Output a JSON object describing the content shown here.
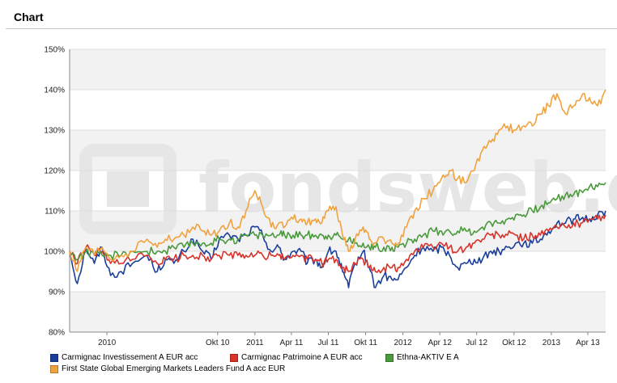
{
  "page": {
    "title": "Chart"
  },
  "watermark": {
    "text": "fondsweb.de"
  },
  "colors": {
    "band": "#f2f2f2",
    "grid": "#dddddd",
    "axis": "#888888"
  },
  "chart_data": {
    "type": "line",
    "title": "",
    "xlabel": "",
    "ylabel": "",
    "x_range": [
      "2009-10-01",
      "2013-05-15"
    ],
    "ylim": [
      80,
      150
    ],
    "y_ticks": [
      80,
      90,
      100,
      110,
      120,
      130,
      140,
      150
    ],
    "y_tick_labels": [
      "80%",
      "90%",
      "100%",
      "110%",
      "120%",
      "130%",
      "140%",
      "150%"
    ],
    "x_ticks": [
      {
        "label": "2010",
        "date": "2010-01-01"
      },
      {
        "label": "Okt 10",
        "date": "2010-10-01"
      },
      {
        "label": "2011",
        "date": "2011-01-01"
      },
      {
        "label": "Apr 11",
        "date": "2011-04-01"
      },
      {
        "label": "Jul 11",
        "date": "2011-07-01"
      },
      {
        "label": "Okt 11",
        "date": "2011-10-01"
      },
      {
        "label": "2012",
        "date": "2012-01-01"
      },
      {
        "label": "Apr 12",
        "date": "2012-04-01"
      },
      {
        "label": "Jul 12",
        "date": "2012-07-01"
      },
      {
        "label": "Okt 12",
        "date": "2012-10-01"
      },
      {
        "label": "2013",
        "date": "2013-01-01"
      },
      {
        "label": "Apr 13",
        "date": "2013-04-01"
      }
    ],
    "grid": true,
    "legend_position": "bottom",
    "series": [
      {
        "name": "Carmignac Investissement A EUR acc",
        "color": "#1a3f9b",
        "points": [
          [
            "2009-10-01",
            100
          ],
          [
            "2009-10-20",
            92
          ],
          [
            "2009-11-10",
            101
          ],
          [
            "2009-12-01",
            97
          ],
          [
            "2009-12-20",
            101
          ],
          [
            "2010-01-10",
            94
          ],
          [
            "2010-02-05",
            95
          ],
          [
            "2010-03-05",
            97
          ],
          [
            "2010-04-10",
            99
          ],
          [
            "2010-05-05",
            95
          ],
          [
            "2010-05-25",
            98
          ],
          [
            "2010-06-15",
            97
          ],
          [
            "2010-07-10",
            100
          ],
          [
            "2010-08-01",
            103
          ],
          [
            "2010-08-25",
            100
          ],
          [
            "2010-09-15",
            98
          ],
          [
            "2010-10-05",
            103
          ],
          [
            "2010-10-30",
            104
          ],
          [
            "2010-11-20",
            103
          ],
          [
            "2010-12-10",
            104
          ],
          [
            "2011-01-01",
            106
          ],
          [
            "2011-01-20",
            104
          ],
          [
            "2011-02-10",
            100
          ],
          [
            "2011-03-01",
            101
          ],
          [
            "2011-03-15",
            98
          ],
          [
            "2011-04-05",
            100
          ],
          [
            "2011-04-25",
            100
          ],
          [
            "2011-05-10",
            97
          ],
          [
            "2011-05-30",
            98
          ],
          [
            "2011-06-15",
            96
          ],
          [
            "2011-07-01",
            100
          ],
          [
            "2011-07-20",
            100
          ],
          [
            "2011-08-05",
            95
          ],
          [
            "2011-08-20",
            91
          ],
          [
            "2011-09-05",
            97
          ],
          [
            "2011-09-25",
            100
          ],
          [
            "2011-10-10",
            96
          ],
          [
            "2011-10-25",
            91
          ],
          [
            "2011-11-15",
            94
          ],
          [
            "2011-12-05",
            93
          ],
          [
            "2011-12-20",
            93
          ],
          [
            "2012-01-10",
            96
          ],
          [
            "2012-01-30",
            99
          ],
          [
            "2012-02-20",
            101
          ],
          [
            "2012-03-15",
            100
          ],
          [
            "2012-04-05",
            101
          ],
          [
            "2012-04-25",
            99
          ],
          [
            "2012-05-15",
            96
          ],
          [
            "2012-06-05",
            97
          ],
          [
            "2012-06-25",
            98
          ],
          [
            "2012-07-15",
            98
          ],
          [
            "2012-08-05",
            100
          ],
          [
            "2012-08-25",
            100
          ],
          [
            "2012-09-15",
            101
          ],
          [
            "2012-10-05",
            102
          ],
          [
            "2012-10-25",
            102
          ],
          [
            "2012-11-15",
            102
          ],
          [
            "2012-12-05",
            103
          ],
          [
            "2012-12-25",
            105
          ],
          [
            "2013-01-15",
            107
          ],
          [
            "2013-02-05",
            107
          ],
          [
            "2013-02-25",
            108
          ],
          [
            "2013-03-15",
            108
          ],
          [
            "2013-04-05",
            108
          ],
          [
            "2013-04-25",
            109
          ],
          [
            "2013-05-15",
            110
          ]
        ]
      },
      {
        "name": "Carmignac Patrimoine A EUR acc",
        "color": "#d8322a",
        "points": [
          [
            "2009-10-01",
            100
          ],
          [
            "2009-10-20",
            97
          ],
          [
            "2009-11-10",
            101
          ],
          [
            "2009-12-01",
            99
          ],
          [
            "2009-12-20",
            100
          ],
          [
            "2010-01-10",
            97
          ],
          [
            "2010-02-05",
            97
          ],
          [
            "2010-03-05",
            98
          ],
          [
            "2010-04-10",
            99
          ],
          [
            "2010-05-05",
            97
          ],
          [
            "2010-05-25",
            98
          ],
          [
            "2010-06-15",
            98
          ],
          [
            "2010-07-10",
            99
          ],
          [
            "2010-08-01",
            99
          ],
          [
            "2010-08-25",
            99
          ],
          [
            "2010-09-15",
            98
          ],
          [
            "2010-10-05",
            99
          ],
          [
            "2010-10-30",
            99
          ],
          [
            "2010-11-20",
            99
          ],
          [
            "2010-12-10",
            99
          ],
          [
            "2011-01-01",
            99
          ],
          [
            "2011-01-20",
            99
          ],
          [
            "2011-02-10",
            99
          ],
          [
            "2011-03-01",
            99
          ],
          [
            "2011-03-15",
            98
          ],
          [
            "2011-04-05",
            99
          ],
          [
            "2011-04-25",
            99
          ],
          [
            "2011-05-10",
            98
          ],
          [
            "2011-05-30",
            98
          ],
          [
            "2011-06-15",
            97
          ],
          [
            "2011-07-01",
            98
          ],
          [
            "2011-07-20",
            98
          ],
          [
            "2011-08-05",
            96
          ],
          [
            "2011-08-20",
            95
          ],
          [
            "2011-09-05",
            97
          ],
          [
            "2011-09-25",
            98
          ],
          [
            "2011-10-10",
            96
          ],
          [
            "2011-10-25",
            95
          ],
          [
            "2011-11-15",
            96
          ],
          [
            "2011-12-05",
            96
          ],
          [
            "2011-12-20",
            96
          ],
          [
            "2012-01-10",
            98
          ],
          [
            "2012-01-30",
            100
          ],
          [
            "2012-02-20",
            101
          ],
          [
            "2012-03-15",
            101
          ],
          [
            "2012-04-05",
            102
          ],
          [
            "2012-04-25",
            101
          ],
          [
            "2012-05-15",
            100
          ],
          [
            "2012-06-05",
            101
          ],
          [
            "2012-06-25",
            102
          ],
          [
            "2012-07-15",
            103
          ],
          [
            "2012-08-05",
            104
          ],
          [
            "2012-08-25",
            104
          ],
          [
            "2012-09-15",
            104
          ],
          [
            "2012-10-05",
            104
          ],
          [
            "2012-10-25",
            103
          ],
          [
            "2012-11-15",
            104
          ],
          [
            "2012-12-05",
            104
          ],
          [
            "2012-12-25",
            105
          ],
          [
            "2013-01-15",
            106
          ],
          [
            "2013-02-05",
            106
          ],
          [
            "2013-02-25",
            107
          ],
          [
            "2013-03-15",
            107
          ],
          [
            "2013-04-05",
            108
          ],
          [
            "2013-04-25",
            108
          ],
          [
            "2013-05-15",
            109
          ]
        ]
      },
      {
        "name": "Ethna-AKTIV E A",
        "color": "#4a9a3c",
        "points": [
          [
            "2009-10-01",
            100
          ],
          [
            "2009-10-20",
            98
          ],
          [
            "2009-11-10",
            100
          ],
          [
            "2009-12-01",
            99
          ],
          [
            "2009-12-20",
            99
          ],
          [
            "2010-01-10",
            99
          ],
          [
            "2010-02-05",
            99
          ],
          [
            "2010-03-05",
            100
          ],
          [
            "2010-04-10",
            100
          ],
          [
            "2010-05-05",
            100
          ],
          [
            "2010-05-25",
            100
          ],
          [
            "2010-06-15",
            101
          ],
          [
            "2010-07-10",
            101
          ],
          [
            "2010-08-01",
            102
          ],
          [
            "2010-08-25",
            102
          ],
          [
            "2010-09-15",
            102
          ],
          [
            "2010-10-05",
            103
          ],
          [
            "2010-10-30",
            103
          ],
          [
            "2010-11-20",
            103
          ],
          [
            "2010-12-10",
            104
          ],
          [
            "2011-01-01",
            104
          ],
          [
            "2011-01-20",
            104
          ],
          [
            "2011-02-10",
            104
          ],
          [
            "2011-03-01",
            104
          ],
          [
            "2011-03-15",
            104
          ],
          [
            "2011-04-05",
            104
          ],
          [
            "2011-04-25",
            104
          ],
          [
            "2011-05-10",
            104
          ],
          [
            "2011-05-30",
            104
          ],
          [
            "2011-06-15",
            104
          ],
          [
            "2011-07-01",
            104
          ],
          [
            "2011-07-20",
            104
          ],
          [
            "2011-08-05",
            103
          ],
          [
            "2011-08-20",
            103
          ],
          [
            "2011-09-05",
            102
          ],
          [
            "2011-09-25",
            102
          ],
          [
            "2011-10-10",
            101
          ],
          [
            "2011-10-25",
            101
          ],
          [
            "2011-11-15",
            101
          ],
          [
            "2011-12-05",
            101
          ],
          [
            "2011-12-20",
            101
          ],
          [
            "2012-01-10",
            102
          ],
          [
            "2012-01-30",
            103
          ],
          [
            "2012-02-20",
            104
          ],
          [
            "2012-03-15",
            105
          ],
          [
            "2012-04-05",
            105
          ],
          [
            "2012-04-25",
            105
          ],
          [
            "2012-05-15",
            105
          ],
          [
            "2012-06-05",
            105
          ],
          [
            "2012-06-25",
            105
          ],
          [
            "2012-07-15",
            106
          ],
          [
            "2012-08-05",
            107
          ],
          [
            "2012-08-25",
            107
          ],
          [
            "2012-09-15",
            108
          ],
          [
            "2012-10-05",
            109
          ],
          [
            "2012-10-25",
            109
          ],
          [
            "2012-11-15",
            110
          ],
          [
            "2012-12-05",
            111
          ],
          [
            "2012-12-25",
            112
          ],
          [
            "2013-01-15",
            113
          ],
          [
            "2013-02-05",
            114
          ],
          [
            "2013-02-25",
            114
          ],
          [
            "2013-03-15",
            115
          ],
          [
            "2013-04-05",
            116
          ],
          [
            "2013-04-25",
            116
          ],
          [
            "2013-05-15",
            117
          ]
        ]
      },
      {
        "name": "First State Global Emerging Markets Leaders Fund A acc EUR",
        "color": "#f0a23e",
        "points": [
          [
            "2009-10-01",
            100
          ],
          [
            "2009-10-20",
            95
          ],
          [
            "2009-11-10",
            101
          ],
          [
            "2009-12-01",
            99
          ],
          [
            "2009-12-20",
            101
          ],
          [
            "2010-01-10",
            98
          ],
          [
            "2010-02-05",
            99
          ],
          [
            "2010-03-05",
            100
          ],
          [
            "2010-04-10",
            103
          ],
          [
            "2010-05-05",
            101
          ],
          [
            "2010-05-25",
            103
          ],
          [
            "2010-06-15",
            103
          ],
          [
            "2010-07-10",
            104
          ],
          [
            "2010-08-01",
            106
          ],
          [
            "2010-08-25",
            105
          ],
          [
            "2010-09-15",
            104
          ],
          [
            "2010-10-05",
            105
          ],
          [
            "2010-10-30",
            107
          ],
          [
            "2010-11-20",
            106
          ],
          [
            "2010-12-10",
            110
          ],
          [
            "2011-01-01",
            115
          ],
          [
            "2011-01-20",
            111
          ],
          [
            "2011-02-10",
            106
          ],
          [
            "2011-03-01",
            107
          ],
          [
            "2011-03-15",
            106
          ],
          [
            "2011-04-05",
            108
          ],
          [
            "2011-04-25",
            108
          ],
          [
            "2011-05-10",
            107
          ],
          [
            "2011-05-30",
            108
          ],
          [
            "2011-06-15",
            107
          ],
          [
            "2011-07-01",
            110
          ],
          [
            "2011-07-20",
            111
          ],
          [
            "2011-08-05",
            104
          ],
          [
            "2011-08-20",
            100
          ],
          [
            "2011-09-05",
            103
          ],
          [
            "2011-09-25",
            106
          ],
          [
            "2011-10-10",
            103
          ],
          [
            "2011-10-25",
            102
          ],
          [
            "2011-11-15",
            103
          ],
          [
            "2011-12-05",
            102
          ],
          [
            "2011-12-20",
            102
          ],
          [
            "2012-01-10",
            106
          ],
          [
            "2012-01-30",
            110
          ],
          [
            "2012-02-20",
            113
          ],
          [
            "2012-03-15",
            115
          ],
          [
            "2012-04-05",
            118
          ],
          [
            "2012-04-25",
            120
          ],
          [
            "2012-05-15",
            118
          ],
          [
            "2012-06-05",
            117
          ],
          [
            "2012-06-25",
            120
          ],
          [
            "2012-07-15",
            125
          ],
          [
            "2012-08-05",
            127
          ],
          [
            "2012-08-25",
            130
          ],
          [
            "2012-09-15",
            131
          ],
          [
            "2012-10-05",
            130
          ],
          [
            "2012-10-25",
            131
          ],
          [
            "2012-11-15",
            131
          ],
          [
            "2012-12-05",
            134
          ],
          [
            "2012-12-25",
            136
          ],
          [
            "2013-01-15",
            139
          ],
          [
            "2013-02-05",
            134
          ],
          [
            "2013-02-25",
            136
          ],
          [
            "2013-03-15",
            138
          ],
          [
            "2013-04-05",
            138
          ],
          [
            "2013-04-25",
            136
          ],
          [
            "2013-05-15",
            140
          ]
        ]
      }
    ]
  }
}
